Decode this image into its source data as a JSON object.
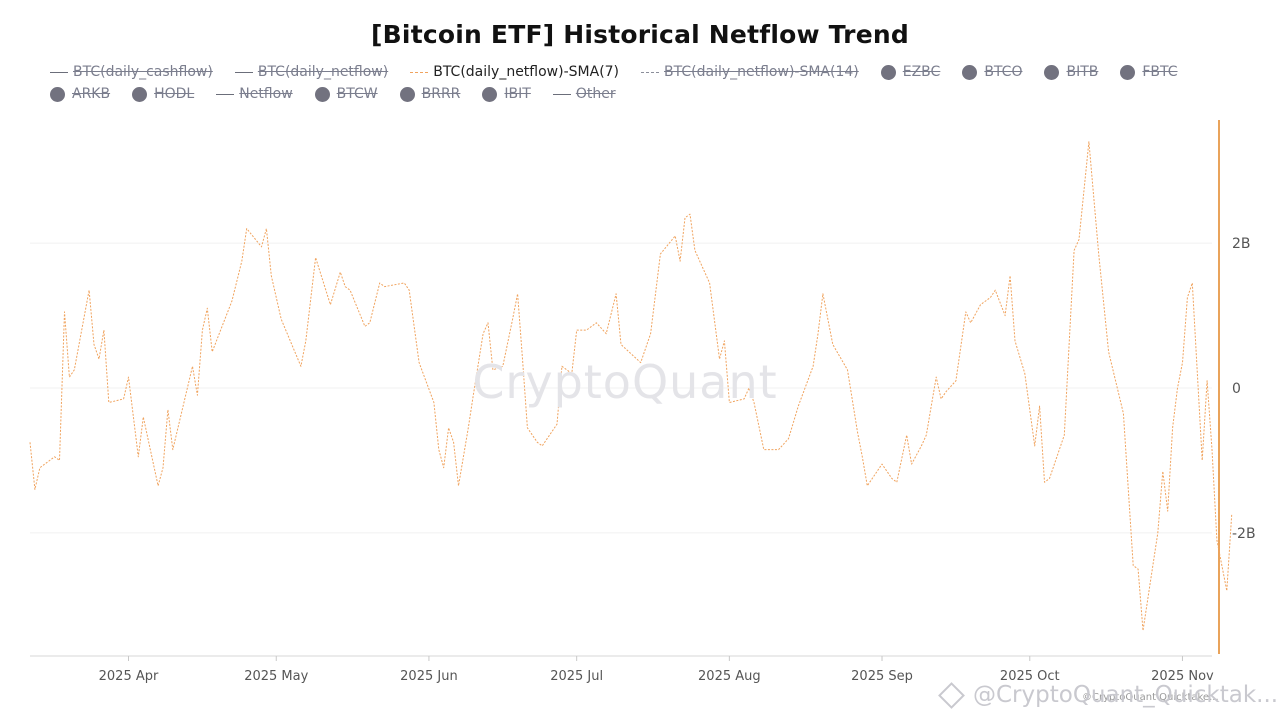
{
  "title": "[Bitcoin ETF] Historical Netflow Trend",
  "watermark": "CryptoQuant",
  "credit": "@CryptoQuant_Quicktak...",
  "credit_small": "©CryptoQuant Quicktake...",
  "legend": [
    {
      "label": "BTC(daily_cashflow)",
      "marker": "line",
      "active": false
    },
    {
      "label": "BTC(daily_netflow)",
      "marker": "line",
      "active": false
    },
    {
      "label": "BTC(daily_netflow)-SMA(7)",
      "marker": "sma7",
      "active": true
    },
    {
      "label": "BTC(daily_netflow)-SMA(14)",
      "marker": "dashed",
      "active": false
    },
    {
      "label": "EZBC",
      "marker": "dot",
      "active": false
    },
    {
      "label": "BTCO",
      "marker": "dot",
      "active": false
    },
    {
      "label": "BITB",
      "marker": "dot",
      "active": false
    },
    {
      "label": "FBTC",
      "marker": "dot",
      "active": false
    },
    {
      "label": "ARKB",
      "marker": "dot",
      "active": false
    },
    {
      "label": "HODL",
      "marker": "dot",
      "active": false
    },
    {
      "label": "Netflow",
      "marker": "line",
      "active": false
    },
    {
      "label": "BTCW",
      "marker": "dot",
      "active": false
    },
    {
      "label": "BRRR",
      "marker": "dot",
      "active": false
    },
    {
      "label": "IBIT",
      "marker": "dot",
      "active": false
    },
    {
      "label": "Other",
      "marker": "line",
      "active": false
    }
  ],
  "colors": {
    "series": "#f0a35e",
    "axis": "#e9a35b",
    "grid": "#f1f1f1",
    "tick_text": "#555555",
    "legend_inactive": "#7b7e8e"
  },
  "chart_data": {
    "type": "line",
    "title": "[Bitcoin ETF] Historical Netflow Trend",
    "xlabel": "",
    "ylabel": "",
    "x_ticks": [
      {
        "date": "2025-04-01",
        "label": "2025 Apr"
      },
      {
        "date": "2025-05-01",
        "label": "2025 May"
      },
      {
        "date": "2025-06-01",
        "label": "2025 Jun"
      },
      {
        "date": "2025-07-01",
        "label": "2025 Jul"
      },
      {
        "date": "2025-08-01",
        "label": "2025 Aug"
      },
      {
        "date": "2025-09-01",
        "label": "2025 Sep"
      },
      {
        "date": "2025-10-01",
        "label": "2025 Oct"
      },
      {
        "date": "2025-11-01",
        "label": "2025 Nov"
      }
    ],
    "y_ticks": [
      {
        "value": 2000000000,
        "label": "2B"
      },
      {
        "value": 0,
        "label": "0"
      },
      {
        "value": -2000000000,
        "label": "-2B"
      }
    ],
    "xlim": [
      "2025-03-12",
      "2025-11-07"
    ],
    "ylim": [
      -3700000000,
      3700000000
    ],
    "y_axis_position": "right",
    "grid": true,
    "legend_position": "top",
    "series": [
      {
        "name": "BTC(daily_netflow)-SMA(7)",
        "values": [
          [
            "2025-03-12",
            -0.75
          ],
          [
            "2025-03-13",
            -1.4
          ],
          [
            "2025-03-14",
            -1.1
          ],
          [
            "2025-03-17",
            -0.95
          ],
          [
            "2025-03-18",
            -1.0
          ],
          [
            "2025-03-19",
            1.05
          ],
          [
            "2025-03-20",
            0.15
          ],
          [
            "2025-03-21",
            0.25
          ],
          [
            "2025-03-24",
            1.35
          ],
          [
            "2025-03-25",
            0.6
          ],
          [
            "2025-03-26",
            0.4
          ],
          [
            "2025-03-27",
            0.8
          ],
          [
            "2025-03-28",
            -0.2
          ],
          [
            "2025-03-31",
            -0.15
          ],
          [
            "2025-04-01",
            0.15
          ],
          [
            "2025-04-03",
            -0.95
          ],
          [
            "2025-04-04",
            -0.4
          ],
          [
            "2025-04-07",
            -1.35
          ],
          [
            "2025-04-08",
            -1.1
          ],
          [
            "2025-04-09",
            -0.3
          ],
          [
            "2025-04-10",
            -0.85
          ],
          [
            "2025-04-14",
            0.3
          ],
          [
            "2025-04-15",
            -0.1
          ],
          [
            "2025-04-16",
            0.8
          ],
          [
            "2025-04-17",
            1.1
          ],
          [
            "2025-04-18",
            0.5
          ],
          [
            "2025-04-22",
            1.2
          ],
          [
            "2025-04-24",
            1.75
          ],
          [
            "2025-04-25",
            2.2
          ],
          [
            "2025-04-28",
            1.95
          ],
          [
            "2025-04-29",
            2.2
          ],
          [
            "2025-04-30",
            1.55
          ],
          [
            "2025-05-02",
            0.95
          ],
          [
            "2025-05-06",
            0.3
          ],
          [
            "2025-05-07",
            0.65
          ],
          [
            "2025-05-09",
            1.8
          ],
          [
            "2025-05-12",
            1.15
          ],
          [
            "2025-05-14",
            1.6
          ],
          [
            "2025-05-15",
            1.4
          ],
          [
            "2025-05-16",
            1.35
          ],
          [
            "2025-05-19",
            0.85
          ],
          [
            "2025-05-20",
            0.9
          ],
          [
            "2025-05-22",
            1.45
          ],
          [
            "2025-05-23",
            1.4
          ],
          [
            "2025-05-27",
            1.45
          ],
          [
            "2025-05-28",
            1.35
          ],
          [
            "2025-05-30",
            0.35
          ],
          [
            "2025-06-02",
            -0.2
          ],
          [
            "2025-06-03",
            -0.85
          ],
          [
            "2025-06-04",
            -1.1
          ],
          [
            "2025-06-05",
            -0.55
          ],
          [
            "2025-06-06",
            -0.75
          ],
          [
            "2025-06-07",
            -1.35
          ],
          [
            "2025-06-09",
            -0.55
          ],
          [
            "2025-06-10",
            -0.1
          ],
          [
            "2025-06-12",
            0.75
          ],
          [
            "2025-06-13",
            0.9
          ],
          [
            "2025-06-14",
            0.25
          ],
          [
            "2025-06-16",
            0.3
          ],
          [
            "2025-06-18",
            0.95
          ],
          [
            "2025-06-19",
            1.3
          ],
          [
            "2025-06-20",
            0.4
          ],
          [
            "2025-06-21",
            -0.55
          ],
          [
            "2025-06-23",
            -0.75
          ],
          [
            "2025-06-24",
            -0.8
          ],
          [
            "2025-06-27",
            -0.5
          ],
          [
            "2025-06-28",
            0.3
          ],
          [
            "2025-06-30",
            0.2
          ],
          [
            "2025-07-01",
            0.8
          ],
          [
            "2025-07-03",
            0.8
          ],
          [
            "2025-07-05",
            0.9
          ],
          [
            "2025-07-07",
            0.75
          ],
          [
            "2025-07-09",
            1.3
          ],
          [
            "2025-07-10",
            0.6
          ],
          [
            "2025-07-14",
            0.35
          ],
          [
            "2025-07-16",
            0.75
          ],
          [
            "2025-07-18",
            1.85
          ],
          [
            "2025-07-21",
            2.1
          ],
          [
            "2025-07-22",
            1.75
          ],
          [
            "2025-07-23",
            2.35
          ],
          [
            "2025-07-24",
            2.4
          ],
          [
            "2025-07-25",
            1.9
          ],
          [
            "2025-07-28",
            1.45
          ],
          [
            "2025-07-30",
            0.4
          ],
          [
            "2025-07-31",
            0.65
          ],
          [
            "2025-08-01",
            -0.2
          ],
          [
            "2025-08-04",
            -0.15
          ],
          [
            "2025-08-05",
            0.0
          ],
          [
            "2025-08-06",
            -0.2
          ],
          [
            "2025-08-08",
            -0.85
          ],
          [
            "2025-08-11",
            -0.85
          ],
          [
            "2025-08-13",
            -0.7
          ],
          [
            "2025-08-15",
            -0.25
          ],
          [
            "2025-08-18",
            0.3
          ],
          [
            "2025-08-19",
            0.75
          ],
          [
            "2025-08-20",
            1.3
          ],
          [
            "2025-08-22",
            0.6
          ],
          [
            "2025-08-25",
            0.25
          ],
          [
            "2025-08-27",
            -0.6
          ],
          [
            "2025-08-28",
            -0.95
          ],
          [
            "2025-08-29",
            -1.35
          ],
          [
            "2025-09-01",
            -1.05
          ],
          [
            "2025-09-03",
            -1.25
          ],
          [
            "2025-09-04",
            -1.3
          ],
          [
            "2025-09-06",
            -0.65
          ],
          [
            "2025-09-07",
            -1.05
          ],
          [
            "2025-09-09",
            -0.8
          ],
          [
            "2025-09-10",
            -0.65
          ],
          [
            "2025-09-12",
            0.15
          ],
          [
            "2025-09-13",
            -0.15
          ],
          [
            "2025-09-14",
            -0.05
          ],
          [
            "2025-09-16",
            0.1
          ],
          [
            "2025-09-18",
            1.05
          ],
          [
            "2025-09-19",
            0.9
          ],
          [
            "2025-09-21",
            1.15
          ],
          [
            "2025-09-23",
            1.25
          ],
          [
            "2025-09-24",
            1.35
          ],
          [
            "2025-09-26",
            1.0
          ],
          [
            "2025-09-27",
            1.55
          ],
          [
            "2025-09-28",
            0.65
          ],
          [
            "2025-09-30",
            0.2
          ],
          [
            "2025-10-02",
            -0.8
          ],
          [
            "2025-10-03",
            -0.25
          ],
          [
            "2025-10-04",
            -1.3
          ],
          [
            "2025-10-05",
            -1.25
          ],
          [
            "2025-10-08",
            -0.65
          ],
          [
            "2025-10-10",
            1.9
          ],
          [
            "2025-10-11",
            2.05
          ],
          [
            "2025-10-13",
            3.4
          ],
          [
            "2025-10-15",
            1.85
          ],
          [
            "2025-10-17",
            0.5
          ],
          [
            "2025-10-20",
            -0.35
          ],
          [
            "2025-10-22",
            -2.45
          ],
          [
            "2025-10-23",
            -2.5
          ],
          [
            "2025-10-24",
            -3.35
          ],
          [
            "2025-10-27",
            -2.0
          ],
          [
            "2025-10-28",
            -1.15
          ],
          [
            "2025-10-29",
            -1.7
          ],
          [
            "2025-10-30",
            -0.55
          ],
          [
            "2025-10-31",
            0.0
          ],
          [
            "2025-11-01",
            0.35
          ],
          [
            "2025-11-02",
            1.25
          ],
          [
            "2025-11-03",
            1.45
          ],
          [
            "2025-11-05",
            -1.0
          ],
          [
            "2025-11-06",
            0.1
          ],
          [
            "2025-11-07",
            -0.85
          ],
          [
            "2025-11-08",
            -2.1
          ],
          [
            "2025-11-10",
            -2.8
          ],
          [
            "2025-11-11",
            -1.75
          ]
        ],
        "unit": "B"
      }
    ]
  }
}
